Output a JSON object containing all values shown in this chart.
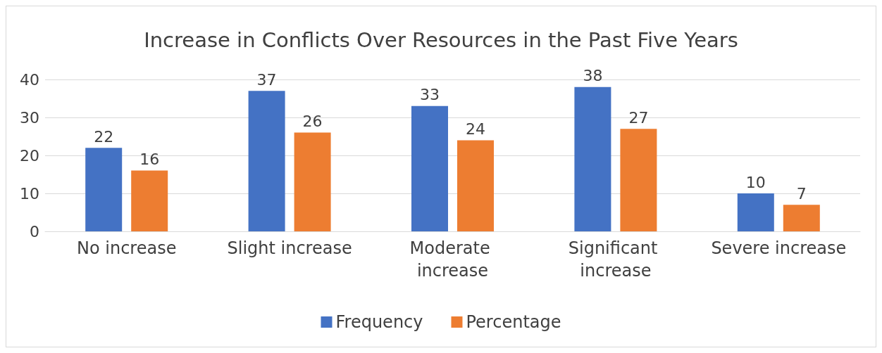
{
  "chart_data": {
    "type": "bar",
    "title": "Increase in Conflicts Over Resources in the Past Five Years",
    "categories": [
      "No increase",
      "Slight increase",
      "Moderate increase",
      "Significant increase",
      "Severe increase"
    ],
    "series": [
      {
        "name": "Frequency",
        "color": "#4472c4",
        "values": [
          22,
          37,
          33,
          38,
          10
        ]
      },
      {
        "name": "Percentage",
        "color": "#ed7d31",
        "values": [
          16,
          26,
          24,
          27,
          7
        ]
      }
    ],
    "ylim": [
      0,
      40
    ],
    "yticks": [
      0,
      10,
      20,
      30,
      40
    ],
    "grid": "y",
    "legend": "bottom",
    "data_labels": true
  }
}
